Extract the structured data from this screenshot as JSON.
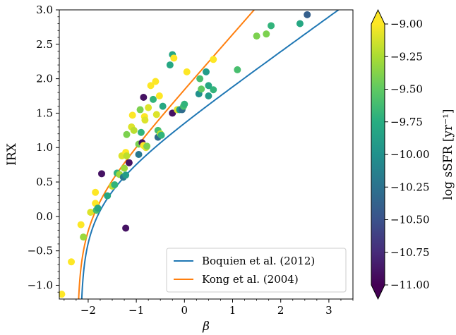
{
  "chart_data": {
    "type": "scatter",
    "xlabel": "β",
    "ylabel": "IRX",
    "xlim": [
      -2.6,
      3.5
    ],
    "ylim": [
      -1.2,
      3.0
    ],
    "x_ticks": [
      "−2",
      "−1",
      "0",
      "1",
      "2",
      "3"
    ],
    "x_tick_values": [
      -2,
      -1,
      0,
      1,
      2,
      3
    ],
    "y_ticks": [
      "−1.0",
      "−0.5",
      "0.0",
      "0.5",
      "1.0",
      "1.5",
      "2.0",
      "2.5",
      "3.0"
    ],
    "y_tick_values": [
      -1.0,
      -0.5,
      0.0,
      0.5,
      1.0,
      1.5,
      2.0,
      2.5,
      3.0
    ],
    "colorbar": {
      "label": "log sSFR [yr⁻¹]",
      "range": [
        -11.0,
        -9.0
      ],
      "ticks": [
        "−9.00",
        "−9.25",
        "−9.50",
        "−9.75",
        "−10.00",
        "−10.25",
        "−10.50",
        "−10.75",
        "−11.00"
      ],
      "tick_values": [
        -9.0,
        -9.25,
        -9.5,
        -9.75,
        -10.0,
        -10.25,
        -10.5,
        -10.75,
        -11.0
      ],
      "colormap": "viridis"
    },
    "legend_position": "lower-right",
    "series": [
      {
        "name": "Boquien et al. (2012)",
        "color": "#1f77b4",
        "type": "line",
        "relation": "Boquien2012"
      },
      {
        "name": "Kong et al. (2004)",
        "color": "#ff7f0e",
        "type": "line",
        "relation": "Kong2004"
      }
    ],
    "points": [
      {
        "x": -2.55,
        "y": -1.13,
        "c": -9.0
      },
      {
        "x": -2.35,
        "y": -0.66,
        "c": -9.0
      },
      {
        "x": -2.15,
        "y": -0.12,
        "c": -9.0
      },
      {
        "x": -2.1,
        "y": -0.3,
        "c": -9.3
      },
      {
        "x": -1.95,
        "y": 0.06,
        "c": -9.1
      },
      {
        "x": -1.85,
        "y": 0.19,
        "c": -9.0
      },
      {
        "x": -1.83,
        "y": 0.09,
        "c": -9.6
      },
      {
        "x": -1.8,
        "y": 0.12,
        "c": -9.8
      },
      {
        "x": -1.85,
        "y": 0.35,
        "c": -9.0
      },
      {
        "x": -1.72,
        "y": 0.62,
        "c": -10.9
      },
      {
        "x": -1.6,
        "y": 0.3,
        "c": -9.8
      },
      {
        "x": -1.5,
        "y": 0.44,
        "c": -9.2
      },
      {
        "x": -1.45,
        "y": 0.46,
        "c": -9.7
      },
      {
        "x": -1.4,
        "y": 0.63,
        "c": -9.7
      },
      {
        "x": -1.35,
        "y": 0.61,
        "c": -9.3
      },
      {
        "x": -1.3,
        "y": 0.88,
        "c": -9.1
      },
      {
        "x": -1.27,
        "y": 0.57,
        "c": -10.2
      },
      {
        "x": -1.25,
        "y": 0.7,
        "c": -9.3
      },
      {
        "x": -1.22,
        "y": 0.6,
        "c": -9.9
      },
      {
        "x": -1.22,
        "y": 0.93,
        "c": -9.0
      },
      {
        "x": -1.2,
        "y": 0.88,
        "c": -9.2
      },
      {
        "x": -1.2,
        "y": 1.19,
        "c": -9.4
      },
      {
        "x": -1.15,
        "y": 0.78,
        "c": -10.9
      },
      {
        "x": -1.1,
        "y": 1.3,
        "c": -9.1
      },
      {
        "x": -1.08,
        "y": 1.47,
        "c": -9.0
      },
      {
        "x": -1.05,
        "y": 1.25,
        "c": -9.2
      },
      {
        "x": -1.22,
        "y": -0.17,
        "c": -10.9
      },
      {
        "x": -0.95,
        "y": 0.9,
        "c": -10.2
      },
      {
        "x": -0.95,
        "y": 1.05,
        "c": -9.4
      },
      {
        "x": -0.92,
        "y": 1.55,
        "c": -9.4
      },
      {
        "x": -0.9,
        "y": 1.22,
        "c": -9.7
      },
      {
        "x": -0.88,
        "y": 1.07,
        "c": -10.9
      },
      {
        "x": -0.85,
        "y": 1.03,
        "c": -9.0
      },
      {
        "x": -0.85,
        "y": 1.73,
        "c": -10.9
      },
      {
        "x": -0.83,
        "y": 1.45,
        "c": -9.0
      },
      {
        "x": -0.82,
        "y": 1.4,
        "c": -9.1
      },
      {
        "x": -0.8,
        "y": 1.0,
        "c": -9.1
      },
      {
        "x": -0.78,
        "y": 1.02,
        "c": -9.4
      },
      {
        "x": -0.75,
        "y": 1.58,
        "c": -9.1
      },
      {
        "x": -0.7,
        "y": 1.9,
        "c": -9.0
      },
      {
        "x": -0.65,
        "y": 1.7,
        "c": -9.7
      },
      {
        "x": -0.6,
        "y": 1.96,
        "c": -9.0
      },
      {
        "x": -0.58,
        "y": 1.48,
        "c": -9.1
      },
      {
        "x": -0.55,
        "y": 1.15,
        "c": -10.3
      },
      {
        "x": -0.55,
        "y": 1.25,
        "c": -9.6
      },
      {
        "x": -0.52,
        "y": 1.75,
        "c": -9.0
      },
      {
        "x": -0.5,
        "y": 1.2,
        "c": -9.2
      },
      {
        "x": -0.48,
        "y": 1.18,
        "c": -9.7
      },
      {
        "x": -0.45,
        "y": 1.6,
        "c": -9.8
      },
      {
        "x": -0.3,
        "y": 2.2,
        "c": -9.8
      },
      {
        "x": -0.25,
        "y": 1.5,
        "c": -10.9
      },
      {
        "x": -0.25,
        "y": 2.35,
        "c": -9.8
      },
      {
        "x": -0.22,
        "y": 2.3,
        "c": -9.0
      },
      {
        "x": -0.15,
        "y": 1.55,
        "c": -9.1
      },
      {
        "x": -0.1,
        "y": 1.55,
        "c": -9.9
      },
      {
        "x": -0.05,
        "y": 1.55,
        "c": -10.3
      },
      {
        "x": -0.02,
        "y": 1.6,
        "c": -9.6
      },
      {
        "x": 0.0,
        "y": 1.63,
        "c": -9.7
      },
      {
        "x": 0.05,
        "y": 2.1,
        "c": -9.0
      },
      {
        "x": 0.3,
        "y": 1.78,
        "c": -10.0
      },
      {
        "x": 0.32,
        "y": 2.0,
        "c": -9.6
      },
      {
        "x": 0.35,
        "y": 1.85,
        "c": -9.5
      },
      {
        "x": 0.45,
        "y": 2.1,
        "c": -9.9
      },
      {
        "x": 0.5,
        "y": 1.9,
        "c": -9.8
      },
      {
        "x": 0.5,
        "y": 1.75,
        "c": -9.9
      },
      {
        "x": 0.6,
        "y": 2.28,
        "c": -9.0
      },
      {
        "x": 0.6,
        "y": 1.84,
        "c": -9.7
      },
      {
        "x": 1.1,
        "y": 2.13,
        "c": -9.6
      },
      {
        "x": 1.5,
        "y": 2.62,
        "c": -9.4
      },
      {
        "x": 1.7,
        "y": 2.65,
        "c": -9.4
      },
      {
        "x": 1.8,
        "y": 2.77,
        "c": -9.7
      },
      {
        "x": 2.4,
        "y": 2.8,
        "c": -9.8
      },
      {
        "x": 2.55,
        "y": 2.93,
        "c": -10.4
      }
    ]
  }
}
